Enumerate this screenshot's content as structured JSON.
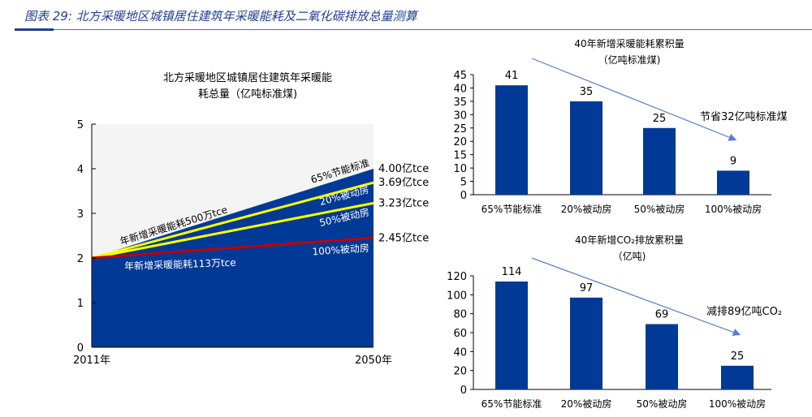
{
  "header": {
    "title": "图表 29: 北方采暖地区城镇居住建筑年采暖能耗及二氧化碳排放总量测算"
  },
  "chart_data": [
    {
      "type": "area",
      "title": [
        "北方采暖地区城镇居住建筑年采暖能",
        "耗总量（亿吨标准煤)"
      ],
      "x": [
        "2011年",
        "2050年"
      ],
      "ylim": [
        0,
        5
      ],
      "yticks": [
        0,
        1,
        2,
        3,
        4,
        5
      ],
      "series": [
        {
          "name": "65%节能标准",
          "values": [
            2.0,
            4.0
          ],
          "end_label": "4.00亿tce",
          "color": "#003a96"
        },
        {
          "name": "20%被动房",
          "values": [
            2.0,
            3.69
          ],
          "end_label": "3.69亿tce",
          "color": "#ffff00"
        },
        {
          "name": "50%被动房",
          "values": [
            2.0,
            3.23
          ],
          "end_label": "3.23亿tce",
          "color": "#ffff00"
        },
        {
          "name": "100%被动房",
          "values": [
            2.0,
            2.45
          ],
          "end_label": "2.45亿tce",
          "color": "#c00000"
        }
      ],
      "annotations": [
        "年新增采暖能耗500万tce",
        "年新增采暖能耗113万tce"
      ]
    },
    {
      "type": "bar",
      "title": [
        "40年新增采暖能耗累积量",
        "（亿吨标准煤)"
      ],
      "categories": [
        "65%节能标准",
        "20%被动房",
        "50%被动房",
        "100%被动房"
      ],
      "values": [
        41,
        35,
        25,
        9
      ],
      "ylim": [
        0,
        45
      ],
      "yticks": [
        0,
        5,
        10,
        15,
        20,
        25,
        30,
        35,
        40,
        45
      ],
      "annotation": "节省32亿吨标准煤",
      "color": "#003a96"
    },
    {
      "type": "bar",
      "title": [
        "40年新增CO₂排放累积量",
        "（亿吨)"
      ],
      "categories": [
        "65%节能标准",
        "20%被动房",
        "50%被动房",
        "100%被动房"
      ],
      "values": [
        114,
        97,
        69,
        25
      ],
      "ylim": [
        0,
        120
      ],
      "yticks": [
        0,
        20,
        40,
        60,
        80,
        100,
        120
      ],
      "annotation": "减排89亿吨CO₂",
      "color": "#003a96"
    }
  ]
}
